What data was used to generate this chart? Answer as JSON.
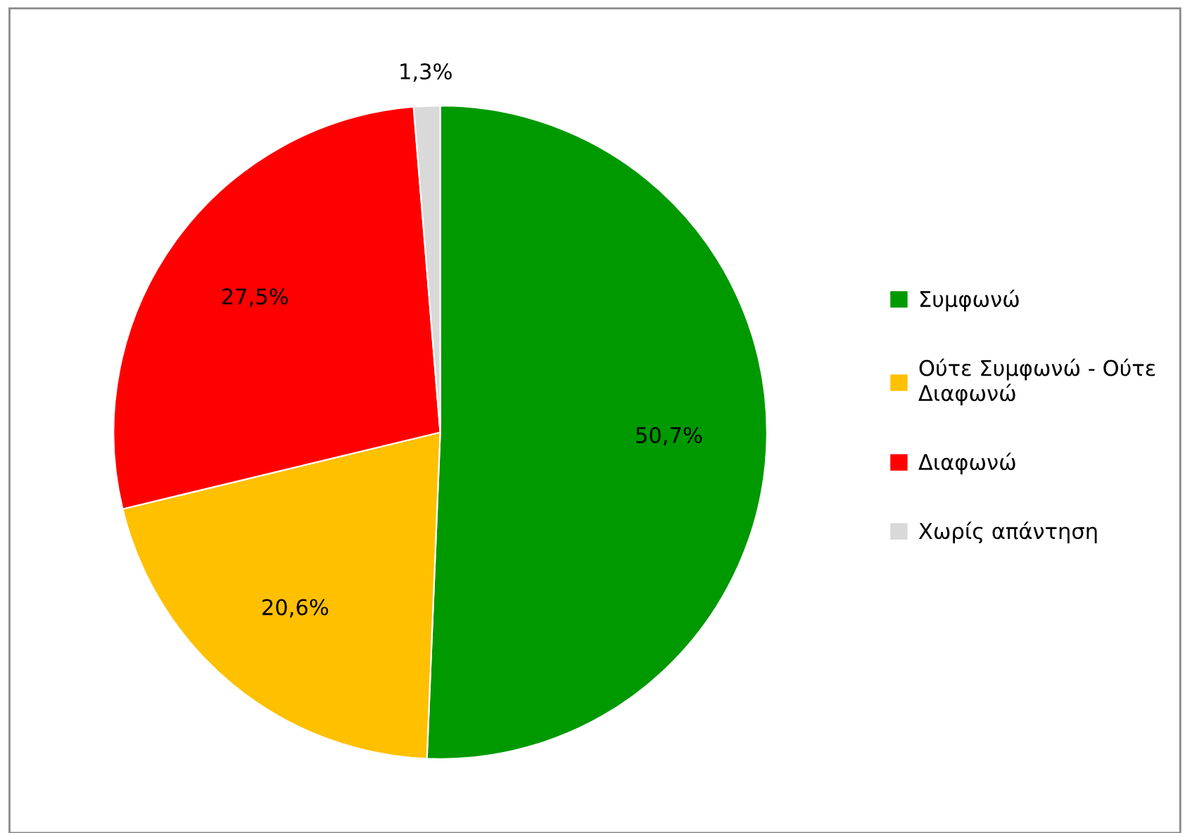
{
  "chart_data": {
    "type": "pie",
    "categories": [
      "Συμφωνώ",
      "Ούτε Συμφωνώ - Ούτε Διαφωνώ",
      "Διαφωνώ",
      "Χωρίς απάντηση"
    ],
    "values": [
      50.7,
      20.6,
      27.5,
      1.3
    ],
    "colors": [
      "#009900",
      "#ffc000",
      "#ff0000",
      "#d9d9d9"
    ],
    "value_labels": [
      "50,7%",
      "20,6%",
      "27,5%",
      "1,3%"
    ],
    "legend": "right"
  }
}
